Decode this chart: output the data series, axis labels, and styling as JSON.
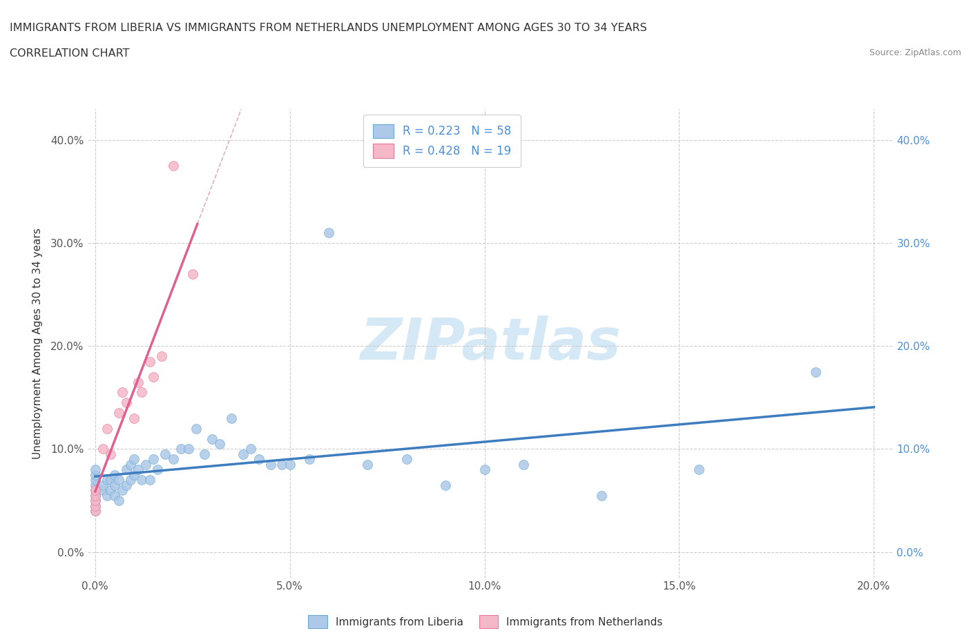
{
  "title_line1": "IMMIGRANTS FROM LIBERIA VS IMMIGRANTS FROM NETHERLANDS UNEMPLOYMENT AMONG AGES 30 TO 34 YEARS",
  "title_line2": "CORRELATION CHART",
  "source": "Source: ZipAtlas.com",
  "ylabel": "Unemployment Among Ages 30 to 34 years",
  "xlim": [
    -0.002,
    0.205
  ],
  "ylim": [
    -0.025,
    0.43
  ],
  "xticks": [
    0.0,
    0.05,
    0.1,
    0.15,
    0.2
  ],
  "yticks": [
    0.0,
    0.1,
    0.2,
    0.3,
    0.4
  ],
  "xticklabels": [
    "0.0%",
    "5.0%",
    "10.0%",
    "15.0%",
    "20.0%"
  ],
  "yticklabels": [
    "0.0%",
    "10.0%",
    "20.0%",
    "30.0%",
    "40.0%"
  ],
  "legend_r1": "R = 0.223",
  "legend_n1": "N = 58",
  "legend_r2": "R = 0.428",
  "legend_n2": "N = 19",
  "color_liberia": "#adc8e8",
  "color_netherlands": "#f5b8c8",
  "edge_liberia": "#6aaad4",
  "edge_netherlands": "#e8789a",
  "line_color_liberia": "#3d7dbf",
  "line_color_netherlands": "#e06090",
  "watermark_color": "#d5e8f5",
  "title_color": "#333333",
  "tick_color_left": "#555555",
  "tick_color_right": "#4a90d9",
  "ylabel_color": "#333333",
  "liberia_x": [
    0.0,
    0.0,
    0.0,
    0.0,
    0.0,
    0.0,
    0.0,
    0.0,
    0.0,
    0.002,
    0.002,
    0.003,
    0.003,
    0.004,
    0.004,
    0.005,
    0.005,
    0.005,
    0.006,
    0.006,
    0.007,
    0.008,
    0.008,
    0.009,
    0.009,
    0.01,
    0.01,
    0.011,
    0.012,
    0.013,
    0.014,
    0.015,
    0.016,
    0.018,
    0.02,
    0.022,
    0.024,
    0.026,
    0.028,
    0.03,
    0.032,
    0.035,
    0.038,
    0.04,
    0.042,
    0.045,
    0.048,
    0.05,
    0.055,
    0.06,
    0.07,
    0.08,
    0.09,
    0.1,
    0.11,
    0.13,
    0.155,
    0.185
  ],
  "liberia_y": [
    0.04,
    0.045,
    0.05,
    0.055,
    0.06,
    0.065,
    0.07,
    0.075,
    0.08,
    0.06,
    0.065,
    0.055,
    0.07,
    0.06,
    0.07,
    0.055,
    0.065,
    0.075,
    0.05,
    0.07,
    0.06,
    0.065,
    0.08,
    0.07,
    0.085,
    0.075,
    0.09,
    0.08,
    0.07,
    0.085,
    0.07,
    0.09,
    0.08,
    0.095,
    0.09,
    0.1,
    0.1,
    0.12,
    0.095,
    0.11,
    0.105,
    0.13,
    0.095,
    0.1,
    0.09,
    0.085,
    0.085,
    0.085,
    0.09,
    0.31,
    0.085,
    0.09,
    0.065,
    0.08,
    0.085,
    0.055,
    0.08,
    0.175
  ],
  "netherlands_x": [
    0.0,
    0.0,
    0.0,
    0.0,
    0.0,
    0.002,
    0.003,
    0.004,
    0.006,
    0.007,
    0.008,
    0.01,
    0.011,
    0.012,
    0.014,
    0.015,
    0.017,
    0.02,
    0.025
  ],
  "netherlands_y": [
    0.04,
    0.045,
    0.05,
    0.055,
    0.06,
    0.1,
    0.12,
    0.095,
    0.135,
    0.155,
    0.145,
    0.13,
    0.165,
    0.155,
    0.185,
    0.17,
    0.19,
    0.375,
    0.27
  ]
}
